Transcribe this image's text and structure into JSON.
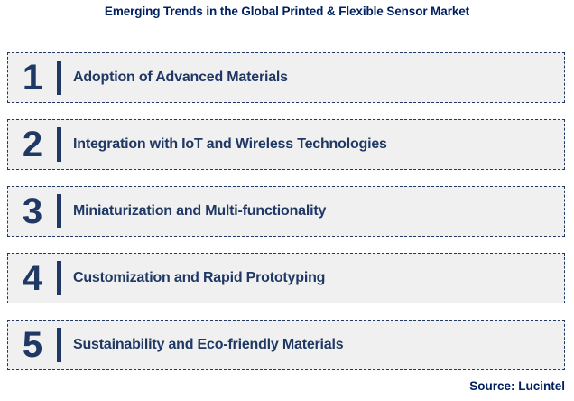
{
  "title": "Emerging Trends in the Global Printed & Flexible Sensor Market",
  "source_label": "Source: Lucintel",
  "colors": {
    "navy": "#1F3864",
    "title_blue": "#002060",
    "box_fill": "#F0F0F0",
    "page_bg": "#FFFFFF"
  },
  "trends": [
    {
      "number": "1",
      "label": "Adoption of Advanced Materials"
    },
    {
      "number": "2",
      "label": "Integration with IoT and Wireless Technologies"
    },
    {
      "number": "3",
      "label": "Miniaturization and Multi-functionality"
    },
    {
      "number": "4",
      "label": "Customization and Rapid Prototyping"
    },
    {
      "number": "5",
      "label": "Sustainability and Eco-friendly Materials"
    }
  ]
}
